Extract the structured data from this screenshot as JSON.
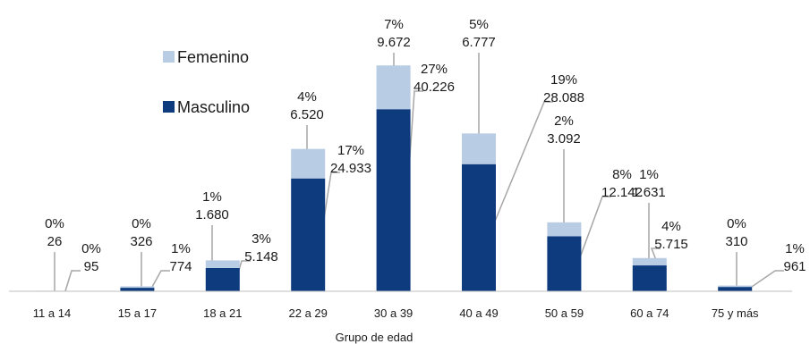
{
  "chart_data": {
    "type": "bar",
    "stacked": true,
    "xlabel": "Grupo de edad",
    "ylabel": "",
    "ylim": [
      0,
      50000
    ],
    "grid": false,
    "legend_position": "upper-left",
    "categories": [
      "11 a 14",
      "15 a 17",
      "18 a 21",
      "22 a 29",
      "30 a 39",
      "40 a 49",
      "50 a 59",
      "60 a 74",
      "75 y más"
    ],
    "series": [
      {
        "name": "Masculino",
        "color": "#0e3a7e",
        "values": [
          95,
          774,
          5148,
          24933,
          40226,
          28088,
          12142,
          5715,
          961
        ],
        "labels": [
          "95",
          "774",
          "5.148",
          "24.933",
          "40.226",
          "28.088",
          "12.142",
          "5.715",
          "961"
        ],
        "pct": [
          "0%",
          "1%",
          "3%",
          "17%",
          "27%",
          "19%",
          "8%",
          "4%",
          "1%"
        ]
      },
      {
        "name": "Femenino",
        "color": "#b8cce4",
        "values": [
          26,
          326,
          1680,
          6520,
          9672,
          6777,
          3092,
          1631,
          310
        ],
        "labels": [
          "26",
          "326",
          "1.680",
          "6.520",
          "9.672",
          "6.777",
          "3.092",
          "1.631",
          "310"
        ],
        "pct": [
          "0%",
          "0%",
          "1%",
          "4%",
          "7%",
          "5%",
          "2%",
          "1%",
          "0%"
        ]
      }
    ]
  }
}
